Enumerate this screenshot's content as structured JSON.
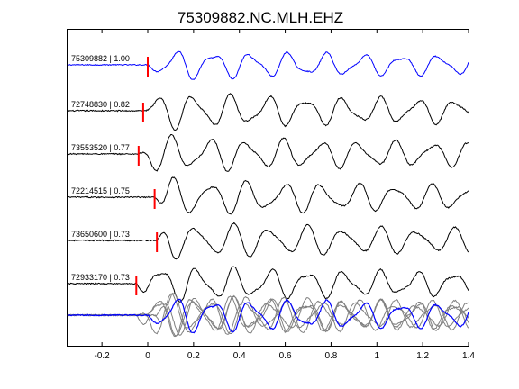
{
  "chart_data": {
    "type": "line",
    "title": "75309882.NC.MLH.EHZ",
    "xlabel": "",
    "ylabel": "",
    "xlim": [
      -0.35,
      1.4
    ],
    "x_ticks": [
      -0.2,
      0,
      0.2,
      0.4,
      0.6,
      0.8,
      1,
      1.2,
      1.4
    ],
    "x_tick_labels": [
      "-0.2",
      "0",
      "0.2",
      "0.4",
      "0.6",
      "0.8",
      "1",
      "1.2",
      "1.4"
    ],
    "pick_color": "#ff0000",
    "reference_color": "#0000ff",
    "trace_color": "#000000",
    "stack_color": "#808080",
    "series": [
      {
        "name": "75309882 | 1.00",
        "event_id": "75309882",
        "correlation": 1.0,
        "pick_time": 0.0,
        "reference": true
      },
      {
        "name": "72748830 | 0.82",
        "event_id": "72748830",
        "correlation": 0.82,
        "pick_time": -0.02,
        "reference": false
      },
      {
        "name": "73553520 | 0.77",
        "event_id": "73553520",
        "correlation": 0.77,
        "pick_time": -0.04,
        "reference": false
      },
      {
        "name": "72214515 | 0.75",
        "event_id": "72214515",
        "correlation": 0.75,
        "pick_time": 0.03,
        "reference": false
      },
      {
        "name": "73650600 | 0.73",
        "event_id": "73650600",
        "correlation": 0.73,
        "pick_time": 0.04,
        "reference": false
      },
      {
        "name": "72933170 | 0.73",
        "event_id": "72933170",
        "correlation": 0.73,
        "pick_time": -0.05,
        "reference": false
      }
    ],
    "overlay": true,
    "grid": false
  }
}
